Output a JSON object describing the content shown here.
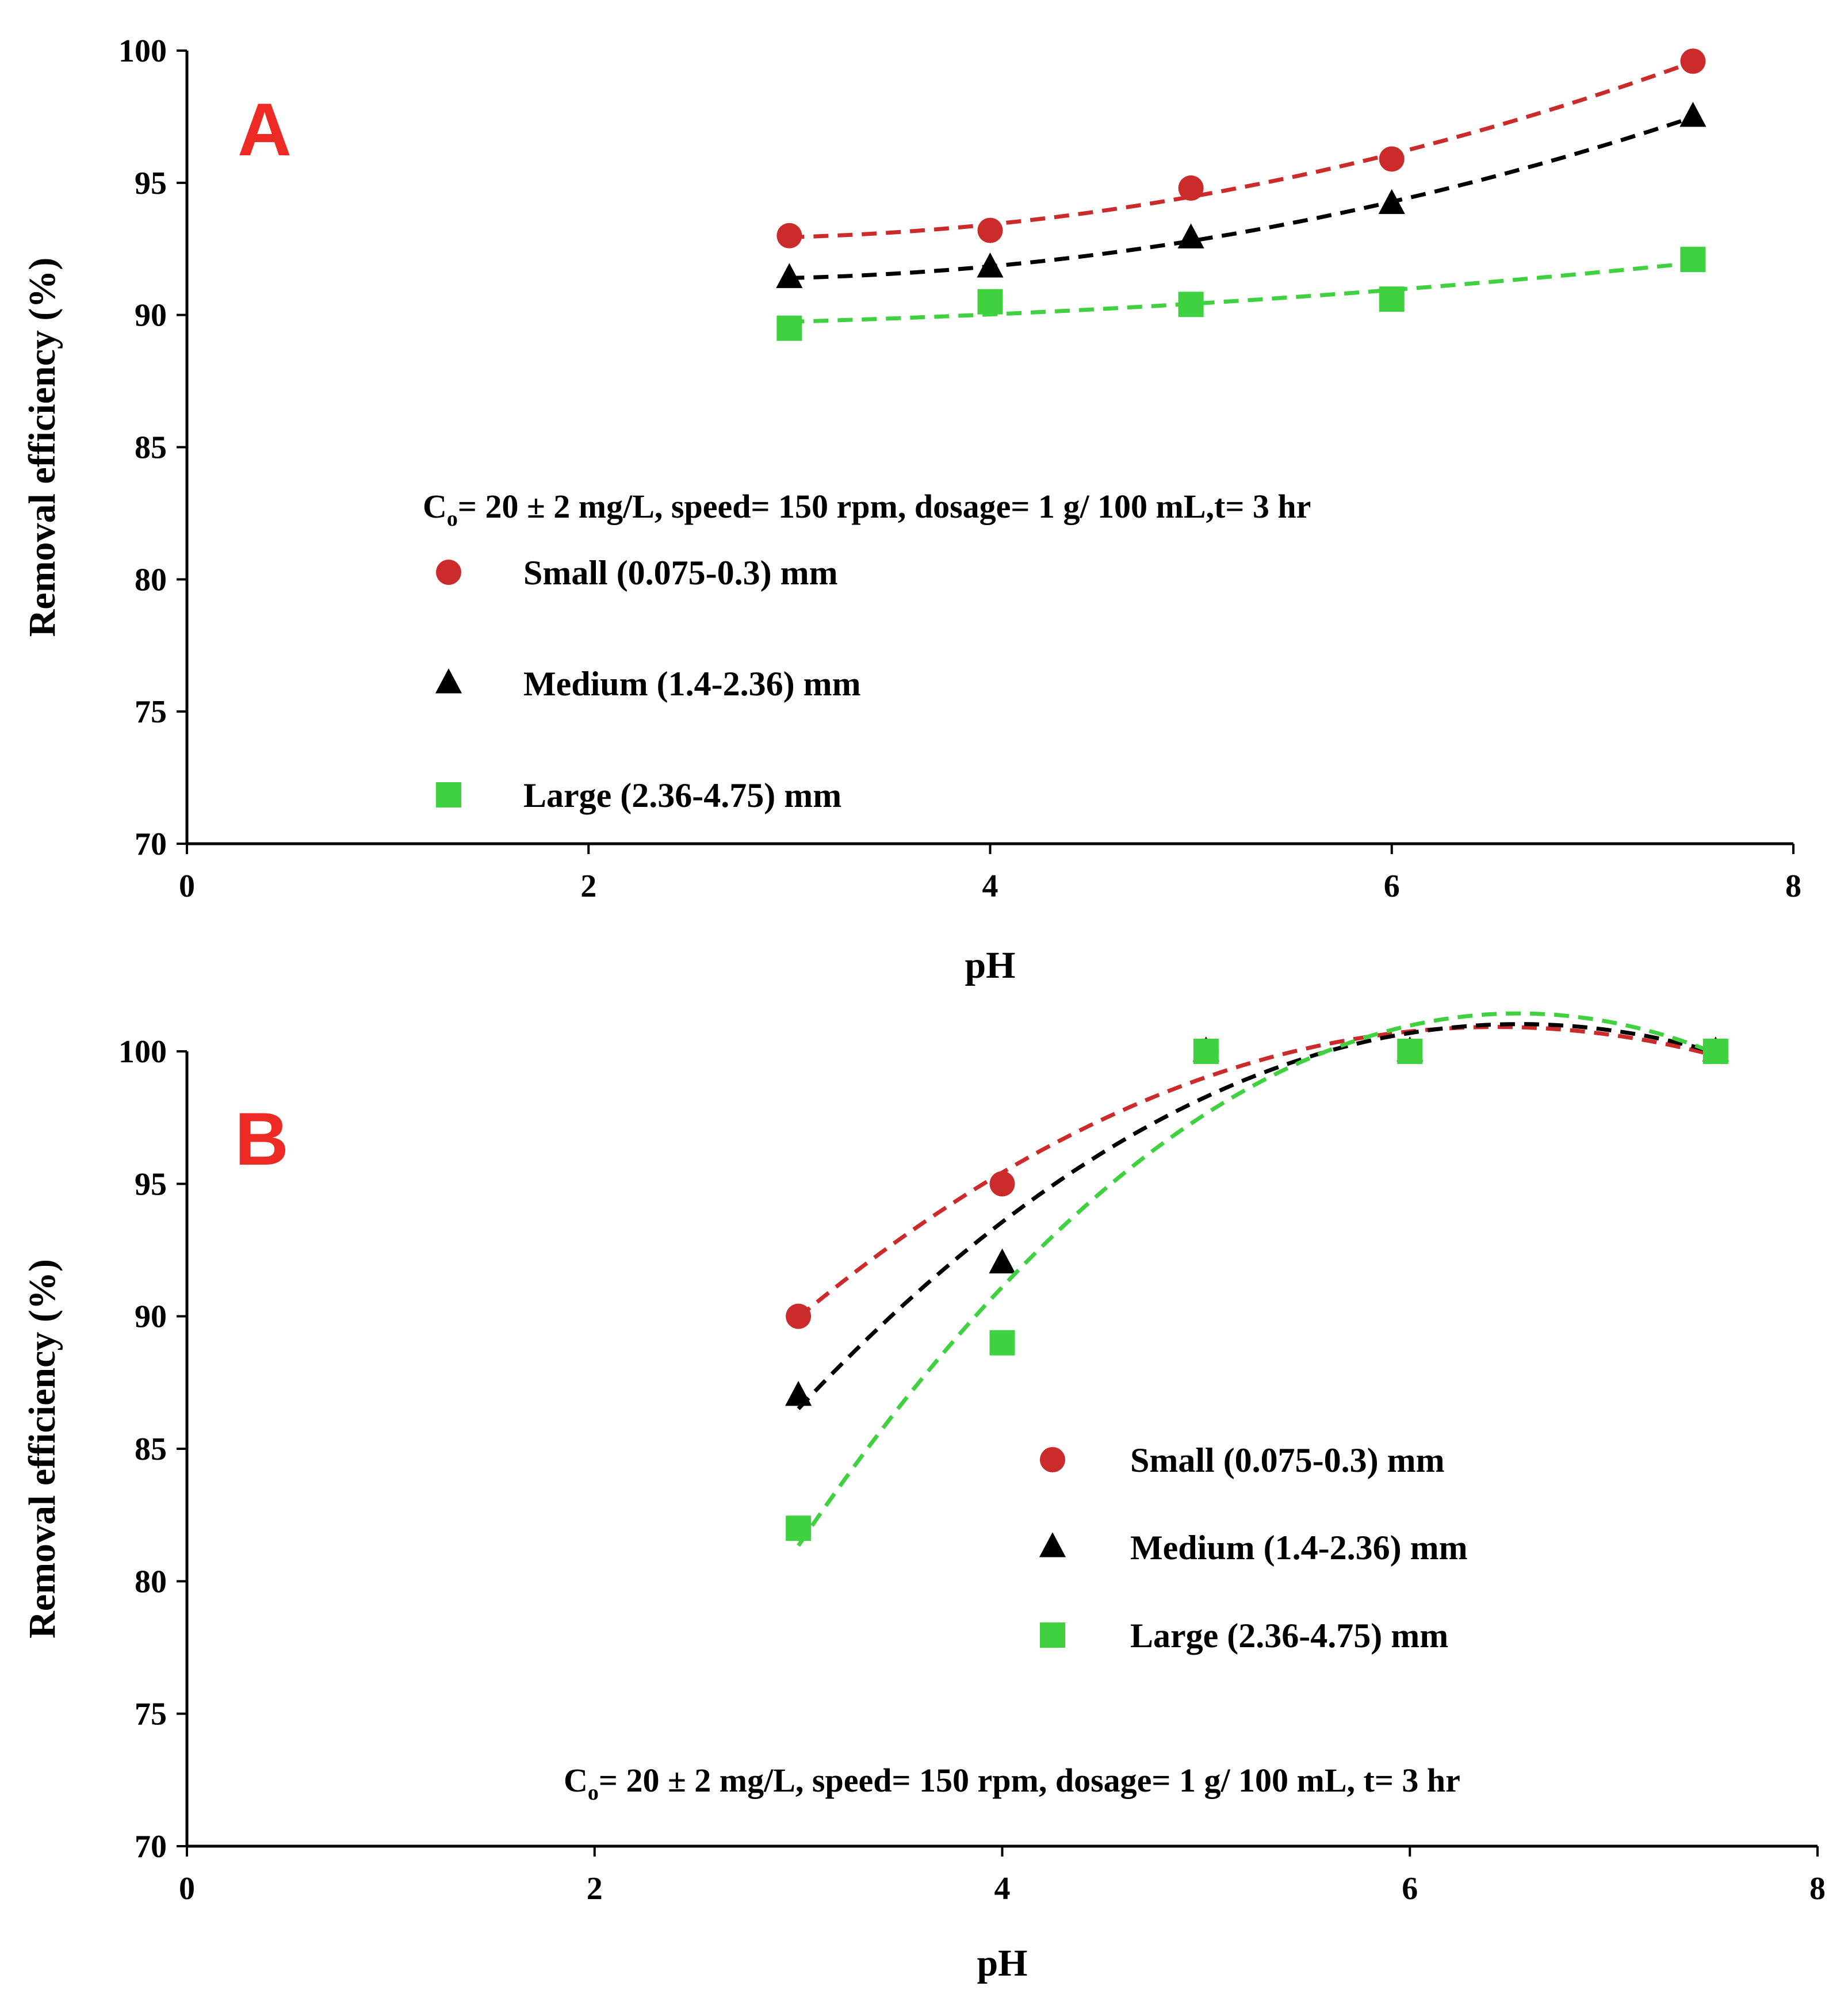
{
  "chart_data": [
    {
      "type": "scatter",
      "panel_label": "A",
      "xlabel": "pH",
      "ylabel": "Removal efficiency (%)",
      "xlim": [
        0,
        8
      ],
      "ylim": [
        70,
        100
      ],
      "xticks": [
        "0",
        "2",
        "4",
        "6",
        "8"
      ],
      "yticks": [
        "70",
        "75",
        "80",
        "85",
        "90",
        "95",
        "100"
      ],
      "conditions_prefix": "C",
      "conditions_sub": "o",
      "conditions_text": "=  20 ± 2 mg/L, speed= 150 rpm, dosage= 1 g/ 100 mL,t= 3 hr",
      "legend_placement": "center-left",
      "series": [
        {
          "name": "Small (0.075-0.3) mm",
          "marker": "circle",
          "color": "#cc2b2b",
          "trend_color": "#cc2b2b",
          "x": [
            3,
            4,
            5,
            6,
            7.5
          ],
          "y": [
            93.0,
            93.2,
            94.8,
            95.9,
            99.6
          ]
        },
        {
          "name": "Medium (1.4-2.36) mm",
          "marker": "triangle",
          "color": "#000000",
          "trend_color": "#000000",
          "x": [
            3,
            4,
            5,
            6,
            7.5
          ],
          "y": [
            91.4,
            91.8,
            92.9,
            94.2,
            97.5
          ]
        },
        {
          "name": "Large (2.36-4.75) mm",
          "marker": "square",
          "color": "#3fd13f",
          "trend_color": "#3fd13f",
          "x": [
            3,
            4,
            5,
            6,
            7.5
          ],
          "y": [
            89.5,
            90.5,
            90.4,
            90.6,
            92.1
          ]
        }
      ]
    },
    {
      "type": "scatter",
      "panel_label": "B",
      "xlabel": "pH",
      "ylabel": "Removal efficiency (%)",
      "xlim": [
        0,
        8
      ],
      "ylim": [
        70,
        100
      ],
      "xticks": [
        "0",
        "2",
        "4",
        "6",
        "8"
      ],
      "yticks": [
        "70",
        "75",
        "80",
        "85",
        "90",
        "95",
        "100"
      ],
      "conditions_prefix": "C",
      "conditions_sub": "o",
      "conditions_text": "=  20 ± 2 mg/L, speed= 150 rpm, dosage= 1 g/ 100 mL, t= 3 hr",
      "legend_placement": "center-right",
      "series": [
        {
          "name": "Small (0.075-0.3) mm",
          "marker": "circle",
          "color": "#cc2b2b",
          "trend_color": "#cc2b2b",
          "x": [
            3,
            4,
            5,
            6,
            7.5
          ],
          "y": [
            90,
            95,
            100,
            100,
            100
          ]
        },
        {
          "name": "Medium (1.4-2.36) mm",
          "marker": "triangle",
          "color": "#000000",
          "trend_color": "#000000",
          "x": [
            3,
            4,
            5,
            6,
            7.5
          ],
          "y": [
            87,
            92,
            100,
            100,
            100
          ]
        },
        {
          "name": "Large (2.36-4.75) mm",
          "marker": "square",
          "color": "#3fd13f",
          "trend_color": "#3fd13f",
          "x": [
            3,
            4,
            5,
            6,
            7.5
          ],
          "y": [
            82,
            89,
            100,
            100,
            100
          ]
        }
      ]
    }
  ]
}
